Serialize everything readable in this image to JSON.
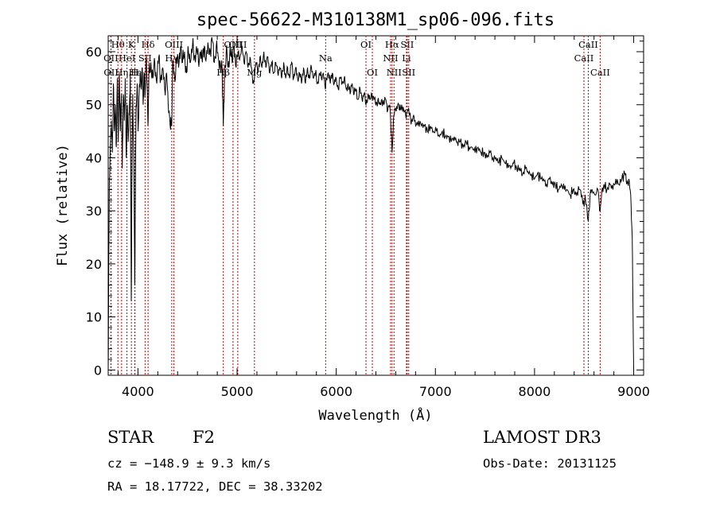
{
  "chart_data": {
    "type": "line",
    "title": "spec-56622-M310138M1_sp06-096.fits",
    "xlabel": "Wavelength (Å)",
    "ylabel": "Flux (relative)",
    "xlim": [
      3700,
      9100
    ],
    "ylim": [
      -1,
      63
    ],
    "x_ticks": [
      4000,
      5000,
      6000,
      7000,
      8000,
      9000
    ],
    "y_ticks": [
      0,
      10,
      20,
      30,
      40,
      50,
      60
    ],
    "line_color": "#000000",
    "marker_color": "#cc0000",
    "series": [
      {
        "name": "flux",
        "points": [
          [
            3700,
            0
          ],
          [
            3705,
            17
          ],
          [
            3712,
            36
          ],
          [
            3722,
            42
          ],
          [
            3732,
            47
          ],
          [
            3742,
            41
          ],
          [
            3752,
            54
          ],
          [
            3762,
            45
          ],
          [
            3772,
            50
          ],
          [
            3782,
            42
          ],
          [
            3792,
            55
          ],
          [
            3802,
            43
          ],
          [
            3812,
            56
          ],
          [
            3822,
            45
          ],
          [
            3832,
            52
          ],
          [
            3842,
            38
          ],
          [
            3852,
            52
          ],
          [
            3862,
            47
          ],
          [
            3872,
            55
          ],
          [
            3882,
            40
          ],
          [
            3892,
            50
          ],
          [
            3902,
            43
          ],
          [
            3912,
            48
          ],
          [
            3922,
            56
          ],
          [
            3933,
            13
          ],
          [
            3938,
            33
          ],
          [
            3948,
            52
          ],
          [
            3958,
            40
          ],
          [
            3968,
            16
          ],
          [
            3972,
            28
          ],
          [
            3982,
            50
          ],
          [
            3992,
            54
          ],
          [
            4002,
            45
          ],
          [
            4012,
            52
          ],
          [
            4022,
            56
          ],
          [
            4032,
            53
          ],
          [
            4042,
            57
          ],
          [
            4052,
            50
          ],
          [
            4062,
            56
          ],
          [
            4072,
            52
          ],
          [
            4085,
            59
          ],
          [
            4101,
            46
          ],
          [
            4110,
            56
          ],
          [
            4130,
            58
          ],
          [
            4150,
            55
          ],
          [
            4170,
            58
          ],
          [
            4190,
            54
          ],
          [
            4210,
            59
          ],
          [
            4230,
            55
          ],
          [
            4250,
            57
          ],
          [
            4270,
            53
          ],
          [
            4290,
            56
          ],
          [
            4305,
            50
          ],
          [
            4325,
            46
          ],
          [
            4340,
            46
          ],
          [
            4350,
            58
          ],
          [
            4370,
            55
          ],
          [
            4390,
            59
          ],
          [
            4410,
            57
          ],
          [
            4430,
            61
          ],
          [
            4450,
            58
          ],
          [
            4470,
            60
          ],
          [
            4490,
            56
          ],
          [
            4510,
            60
          ],
          [
            4530,
            58
          ],
          [
            4550,
            61
          ],
          [
            4570,
            59
          ],
          [
            4590,
            61
          ],
          [
            4610,
            58
          ],
          [
            4630,
            60
          ],
          [
            4650,
            58
          ],
          [
            4670,
            61
          ],
          [
            4690,
            59
          ],
          [
            4710,
            61
          ],
          [
            4730,
            60
          ],
          [
            4750,
            62
          ],
          [
            4770,
            58
          ],
          [
            4790,
            61
          ],
          [
            4810,
            59
          ],
          [
            4830,
            58
          ],
          [
            4850,
            56
          ],
          [
            4861,
            46
          ],
          [
            4872,
            55
          ],
          [
            4890,
            60
          ],
          [
            4910,
            57
          ],
          [
            4930,
            61
          ],
          [
            4950,
            58
          ],
          [
            4970,
            61
          ],
          [
            4990,
            57
          ],
          [
            5010,
            60
          ],
          [
            5030,
            59
          ],
          [
            5050,
            61
          ],
          [
            5070,
            58
          ],
          [
            5090,
            60
          ],
          [
            5110,
            57
          ],
          [
            5130,
            59
          ],
          [
            5150,
            56
          ],
          [
            5167,
            54
          ],
          [
            5175,
            55
          ],
          [
            5190,
            58
          ],
          [
            5210,
            56
          ],
          [
            5230,
            59
          ],
          [
            5250,
            57
          ],
          [
            5270,
            60
          ],
          [
            5290,
            57
          ],
          [
            5310,
            59
          ],
          [
            5330,
            56
          ],
          [
            5350,
            58
          ],
          [
            5370,
            56
          ],
          [
            5390,
            58
          ],
          [
            5410,
            56
          ],
          [
            5430,
            57
          ],
          [
            5450,
            55
          ],
          [
            5470,
            58
          ],
          [
            5490,
            55
          ],
          [
            5510,
            57
          ],
          [
            5530,
            55
          ],
          [
            5550,
            58
          ],
          [
            5570,
            55
          ],
          [
            5590,
            57
          ],
          [
            5610,
            55
          ],
          [
            5630,
            56
          ],
          [
            5650,
            54
          ],
          [
            5670,
            57
          ],
          [
            5690,
            54
          ],
          [
            5710,
            57
          ],
          [
            5730,
            55
          ],
          [
            5750,
            57
          ],
          [
            5770,
            55
          ],
          [
            5790,
            56
          ],
          [
            5810,
            54
          ],
          [
            5830,
            56
          ],
          [
            5850,
            55
          ],
          [
            5870,
            56
          ],
          [
            5890,
            53
          ],
          [
            5900,
            55
          ],
          [
            5920,
            56
          ],
          [
            5940,
            54
          ],
          [
            5960,
            56
          ],
          [
            5980,
            54
          ],
          [
            6000,
            55
          ],
          [
            6020,
            53
          ],
          [
            6040,
            55
          ],
          [
            6060,
            54
          ],
          [
            6080,
            55
          ],
          [
            6100,
            53
          ],
          [
            6120,
            54
          ],
          [
            6140,
            52
          ],
          [
            6160,
            54
          ],
          [
            6180,
            52
          ],
          [
            6200,
            53
          ],
          [
            6220,
            51
          ],
          [
            6240,
            53
          ],
          [
            6260,
            51
          ],
          [
            6280,
            52
          ],
          [
            6300,
            50
          ],
          [
            6320,
            52
          ],
          [
            6340,
            51
          ],
          [
            6360,
            52
          ],
          [
            6380,
            51
          ],
          [
            6400,
            50
          ],
          [
            6420,
            51
          ],
          [
            6440,
            50
          ],
          [
            6460,
            51
          ],
          [
            6480,
            50
          ],
          [
            6500,
            51
          ],
          [
            6520,
            49
          ],
          [
            6540,
            50
          ],
          [
            6563,
            41
          ],
          [
            6580,
            48
          ],
          [
            6600,
            49
          ],
          [
            6620,
            50
          ],
          [
            6640,
            49
          ],
          [
            6660,
            50
          ],
          [
            6680,
            49
          ],
          [
            6700,
            48
          ],
          [
            6720,
            49
          ],
          [
            6740,
            48
          ],
          [
            6760,
            47
          ],
          [
            6780,
            48
          ],
          [
            6800,
            46
          ],
          [
            6830,
            47
          ],
          [
            6860,
            46
          ],
          [
            6890,
            46
          ],
          [
            6920,
            45
          ],
          [
            6950,
            46
          ],
          [
            6980,
            45
          ],
          [
            7010,
            45
          ],
          [
            7040,
            44
          ],
          [
            7070,
            45
          ],
          [
            7100,
            44
          ],
          [
            7130,
            44
          ],
          [
            7160,
            43
          ],
          [
            7190,
            44
          ],
          [
            7220,
            43
          ],
          [
            7250,
            43
          ],
          [
            7280,
            42
          ],
          [
            7310,
            43
          ],
          [
            7340,
            42
          ],
          [
            7370,
            42
          ],
          [
            7400,
            41
          ],
          [
            7430,
            42
          ],
          [
            7460,
            41
          ],
          [
            7490,
            41
          ],
          [
            7520,
            40
          ],
          [
            7550,
            41
          ],
          [
            7580,
            40
          ],
          [
            7610,
            40
          ],
          [
            7640,
            39
          ],
          [
            7670,
            40
          ],
          [
            7700,
            39
          ],
          [
            7730,
            39
          ],
          [
            7760,
            38
          ],
          [
            7790,
            39
          ],
          [
            7820,
            38
          ],
          [
            7850,
            38
          ],
          [
            7880,
            37
          ],
          [
            7910,
            38
          ],
          [
            7940,
            37
          ],
          [
            7970,
            37
          ],
          [
            8000,
            36
          ],
          [
            8030,
            37
          ],
          [
            8060,
            36
          ],
          [
            8090,
            36
          ],
          [
            8120,
            35
          ],
          [
            8150,
            36
          ],
          [
            8180,
            35
          ],
          [
            8210,
            35
          ],
          [
            8240,
            34
          ],
          [
            8270,
            35
          ],
          [
            8300,
            34
          ],
          [
            8330,
            34
          ],
          [
            8360,
            33
          ],
          [
            8390,
            34
          ],
          [
            8420,
            33
          ],
          [
            8450,
            34
          ],
          [
            8480,
            33
          ],
          [
            8498,
            31
          ],
          [
            8510,
            33
          ],
          [
            8542,
            28
          ],
          [
            8560,
            33
          ],
          [
            8580,
            34
          ],
          [
            8610,
            33
          ],
          [
            8640,
            34
          ],
          [
            8662,
            30
          ],
          [
            8680,
            34
          ],
          [
            8700,
            35
          ],
          [
            8730,
            34
          ],
          [
            8760,
            35
          ],
          [
            8790,
            34
          ],
          [
            8820,
            36
          ],
          [
            8850,
            35
          ],
          [
            8880,
            36
          ],
          [
            8910,
            37
          ],
          [
            8930,
            35
          ],
          [
            8950,
            36
          ],
          [
            8970,
            33
          ],
          [
            8985,
            25
          ],
          [
            8995,
            8
          ],
          [
            9000,
            0
          ]
        ]
      }
    ],
    "line_markers": [
      {
        "label": "OII",
        "wavelength": 3727,
        "row": 2
      },
      {
        "label": "OII",
        "wavelength": 3729,
        "row": 3
      },
      {
        "label": "Hθ",
        "wavelength": 3798,
        "row": 1
      },
      {
        "label": "Hη",
        "wavelength": 3835,
        "row": 3
      },
      {
        "label": "HeI",
        "wavelength": 3889,
        "row": 2
      },
      {
        "label": "K",
        "wavelength": 3934,
        "row": 1
      },
      {
        "label": "H",
        "wavelength": 3968,
        "row": 3
      },
      {
        "label": "Hε",
        "wavelength": 3970,
        "row": 3
      },
      {
        "label": "SII",
        "wavelength": 4072,
        "row": 2
      },
      {
        "label": "Hδ",
        "wavelength": 4102,
        "row": 1
      },
      {
        "label": "OIII",
        "wavelength": 4363,
        "row": 1
      },
      {
        "label": "Hγ",
        "wavelength": 4341,
        "row": 2
      },
      {
        "label": "Hβ",
        "wavelength": 4861,
        "row": 3
      },
      {
        "label": "OIII",
        "wavelength": 4959,
        "row": 1
      },
      {
        "label": "OIII",
        "wavelength": 5007,
        "row": 1
      },
      {
        "label": "Mg",
        "wavelength": 5175,
        "row": 3
      },
      {
        "label": "Na",
        "wavelength": 5893,
        "row": 2
      },
      {
        "label": "OI",
        "wavelength": 6300,
        "row": 1
      },
      {
        "label": "OI",
        "wavelength": 6364,
        "row": 3
      },
      {
        "label": "NII",
        "wavelength": 6548,
        "row": 2
      },
      {
        "label": "Hα",
        "wavelength": 6563,
        "row": 1
      },
      {
        "label": "NII",
        "wavelength": 6583,
        "row": 3
      },
      {
        "label": "SII",
        "wavelength": 6716,
        "row": 1
      },
      {
        "label": "Li",
        "wavelength": 6708,
        "row": 2
      },
      {
        "label": "SII",
        "wavelength": 6731,
        "row": 3
      },
      {
        "label": "CaII",
        "wavelength": 8498,
        "row": 2
      },
      {
        "label": "CaII",
        "wavelength": 8542,
        "row": 1
      },
      {
        "label": "CaII",
        "wavelength": 8662,
        "row": 3
      }
    ]
  },
  "info": {
    "object_class": "STAR",
    "subclass": "F2",
    "survey": "LAMOST DR3",
    "cz": "cz = −148.9 ± 9.3 km/s",
    "obs_date": "Obs-Date: 20131125",
    "coords": "RA =  18.17722, DEC =  38.33202"
  }
}
